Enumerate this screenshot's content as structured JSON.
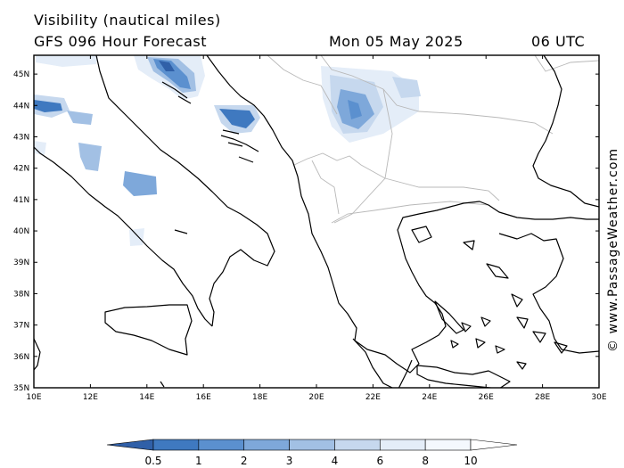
{
  "header": {
    "title": "Visibility (nautical miles)",
    "subtitle": "GFS 096 Hour Forecast",
    "date": "Mon 05 May 2025",
    "time": "06 UTC"
  },
  "credit": "© www.PassageWeather.com",
  "map": {
    "lat_labels": [
      "45N",
      "44N",
      "43N",
      "42N",
      "41N",
      "40N",
      "39N",
      "38N",
      "37N",
      "36N",
      "35N"
    ],
    "lon_labels": [
      "10E",
      "12E",
      "14E",
      "16E",
      "18E",
      "20E",
      "22E",
      "24E",
      "26E",
      "28E",
      "30E"
    ],
    "lat_range": [
      35,
      45.6
    ],
    "lon_range": [
      10,
      30
    ]
  },
  "colorbar": {
    "labels": [
      "0.5",
      "1",
      "2",
      "3",
      "4",
      "6",
      "8",
      "10"
    ],
    "colors": [
      "#3060a8",
      "#3f79c0",
      "#5b90cf",
      "#7ea8da",
      "#a2c0e4",
      "#c6d8ee",
      "#e4edf8",
      "#f4f8fd",
      "#ffffff"
    ]
  }
}
